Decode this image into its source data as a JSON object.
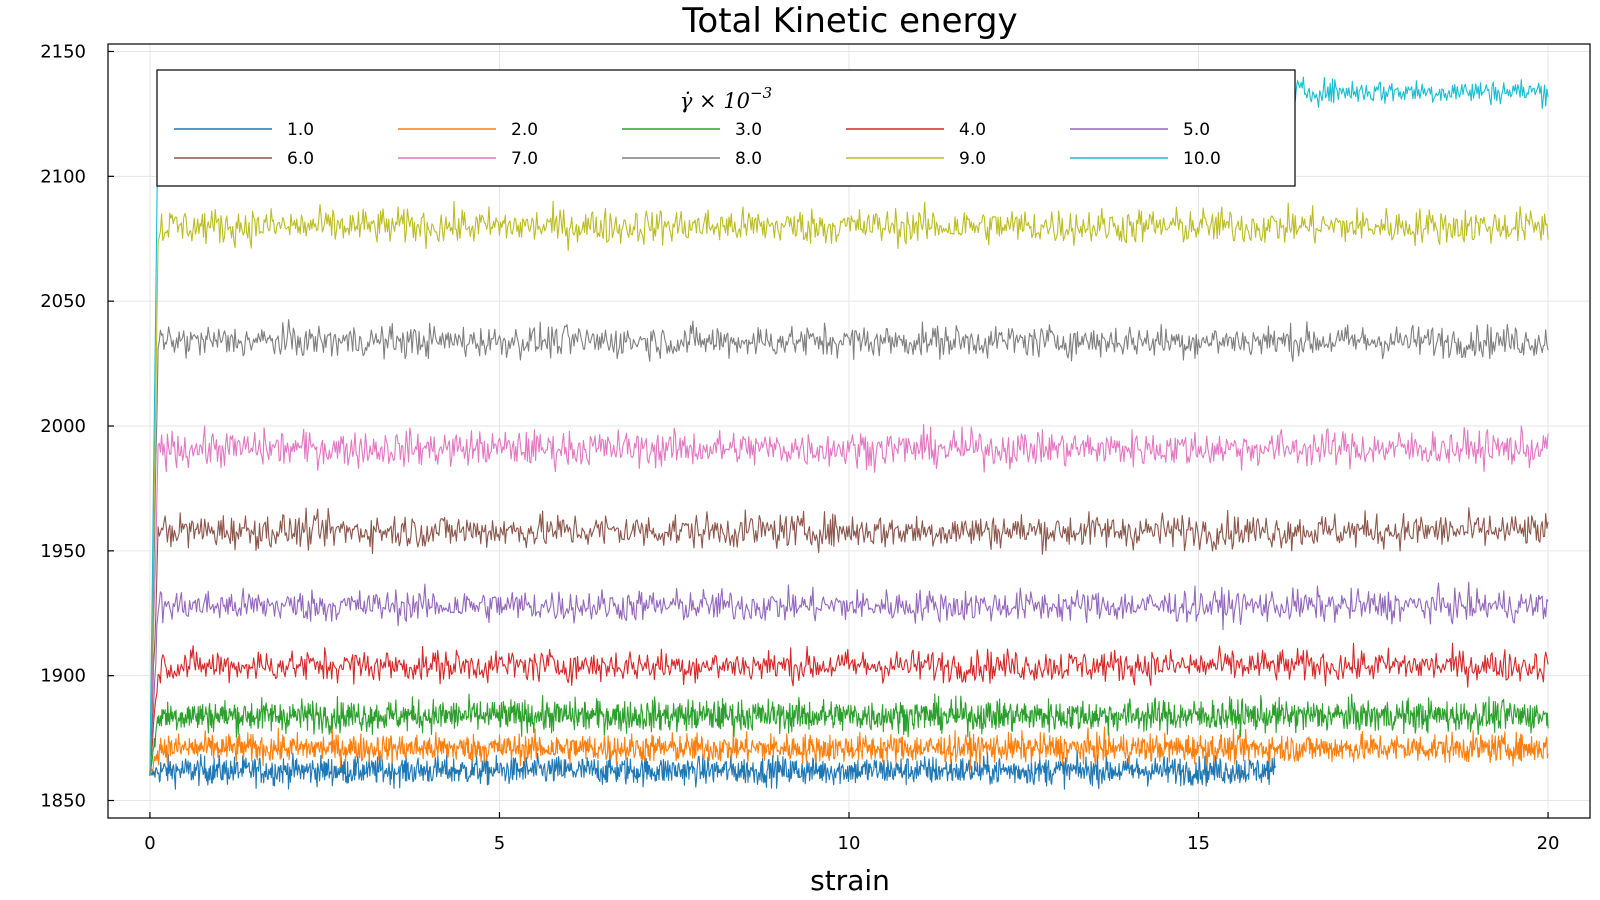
{
  "chart_data": {
    "type": "line",
    "title": "Total Kinetic energy",
    "xlabel": "strain",
    "ylabel": "",
    "xlim": [
      -0.6,
      20.6
    ],
    "ylim": [
      1843,
      2153
    ],
    "xticks": [
      0,
      5,
      10,
      15,
      20
    ],
    "yticks": [
      1850,
      1900,
      1950,
      2000,
      2050,
      2100,
      2150
    ],
    "grid": true,
    "legend": {
      "title_main": "γ̇ × 10",
      "title_exp": "−3",
      "placement": "top-center",
      "columns": 5
    },
    "series": [
      {
        "name": "1.0",
        "color": "#1f77b4",
        "x_end": 16.1,
        "mean": 1862,
        "noise": 4.0
      },
      {
        "name": "2.0",
        "color": "#ff7f0e",
        "x_end": 20,
        "mean": 1871,
        "noise": 4.0
      },
      {
        "name": "3.0",
        "color": "#2ca02c",
        "x_end": 20,
        "mean": 1884,
        "noise": 4.5
      },
      {
        "name": "4.0",
        "color": "#d62728",
        "x_end": 20,
        "mean": 1904,
        "noise": 4.5
      },
      {
        "name": "5.0",
        "color": "#9467bd",
        "x_end": 20,
        "mean": 1928,
        "noise": 4.5
      },
      {
        "name": "6.0",
        "color": "#8c564b",
        "x_end": 20,
        "mean": 1958,
        "noise": 4.8
      },
      {
        "name": "7.0",
        "color": "#e377c2",
        "x_end": 20,
        "mean": 1991,
        "noise": 5.0
      },
      {
        "name": "8.0",
        "color": "#7f7f7f",
        "x_end": 20,
        "mean": 2034,
        "noise": 4.5
      },
      {
        "name": "9.0",
        "color": "#bcbd22",
        "x_end": 20,
        "mean": 2080,
        "noise": 5.0
      },
      {
        "name": "10.0",
        "color": "#17becf",
        "x_end": 20,
        "mean": 2134,
        "noise": 3.5
      }
    ]
  }
}
